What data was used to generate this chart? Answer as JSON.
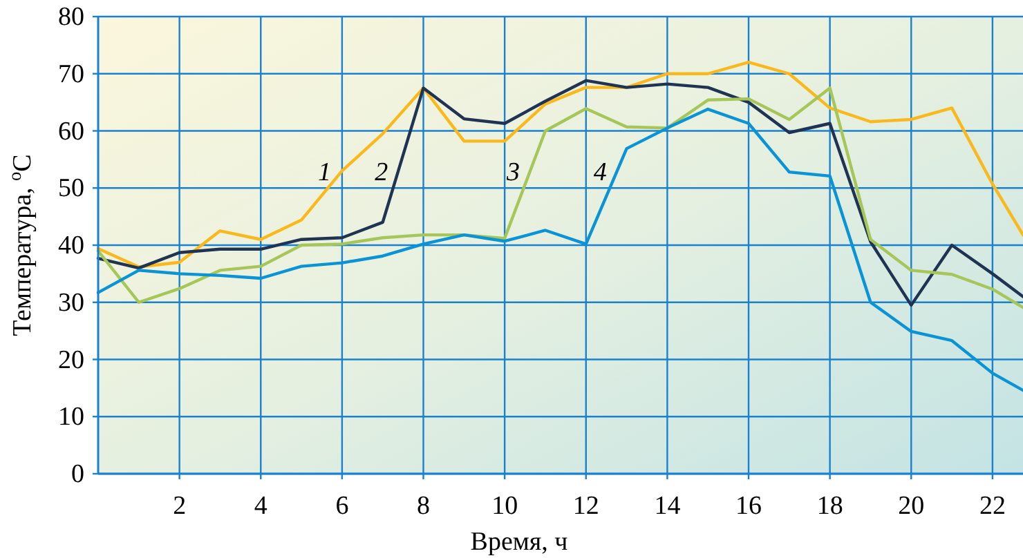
{
  "chart_data": {
    "type": "line",
    "xlabel": "Время, ч",
    "ylabel": "Температура, $^{o}$C",
    "x": [
      0,
      1,
      2,
      3,
      4,
      5,
      6,
      7,
      8,
      9,
      10,
      11,
      12,
      13,
      14,
      15,
      16,
      17,
      18,
      19,
      20,
      21,
      22,
      22.75
    ],
    "xlim": [
      0,
      22.75
    ],
    "xticks": [
      2,
      4,
      6,
      8,
      10,
      12,
      14,
      16,
      18,
      20,
      22
    ],
    "ylim": [
      0,
      80
    ],
    "yticks": [
      0,
      10,
      20,
      30,
      40,
      50,
      60,
      70,
      80
    ],
    "grid": true,
    "line_style": "solid",
    "series": [
      {
        "name": "1",
        "color": "#f9b81c",
        "values": [
          39.4,
          36.2,
          37,
          42.5,
          41,
          44.4,
          53,
          59.5,
          67.5,
          58.2,
          58.2,
          64.7,
          67.6,
          67.6,
          70,
          70,
          72,
          70,
          64,
          61.6,
          62,
          64,
          50.7,
          41.8
        ]
      },
      {
        "name": "2",
        "color": "#1f3352",
        "values": [
          37.7,
          36,
          38.7,
          39.3,
          39.3,
          41,
          41.3,
          44,
          67.5,
          62.1,
          61.3,
          65.2,
          68.8,
          67.6,
          68.2,
          67.6,
          65,
          59.7,
          61.3,
          40.6,
          29.5,
          40,
          35,
          31
        ]
      },
      {
        "name": "3",
        "color": "#a6c65a",
        "values": [
          39,
          30,
          32.4,
          35.6,
          36.3,
          40,
          40.2,
          41.3,
          41.8,
          41.8,
          41.2,
          60,
          63.9,
          60.7,
          60.5,
          65.4,
          65.6,
          62,
          67.5,
          41,
          35.6,
          34.9,
          32.3,
          29.1
        ]
      },
      {
        "name": "4",
        "color": "#0a94d6",
        "values": [
          31.7,
          35.6,
          35,
          34.7,
          34.2,
          36.3,
          36.9,
          38.1,
          40.2,
          41.8,
          40.7,
          42.6,
          40.2,
          56.9,
          60.5,
          63.8,
          61.3,
          52.8,
          52.1,
          30,
          24.9,
          23.3,
          17.6,
          14.6
        ]
      }
    ]
  }
}
